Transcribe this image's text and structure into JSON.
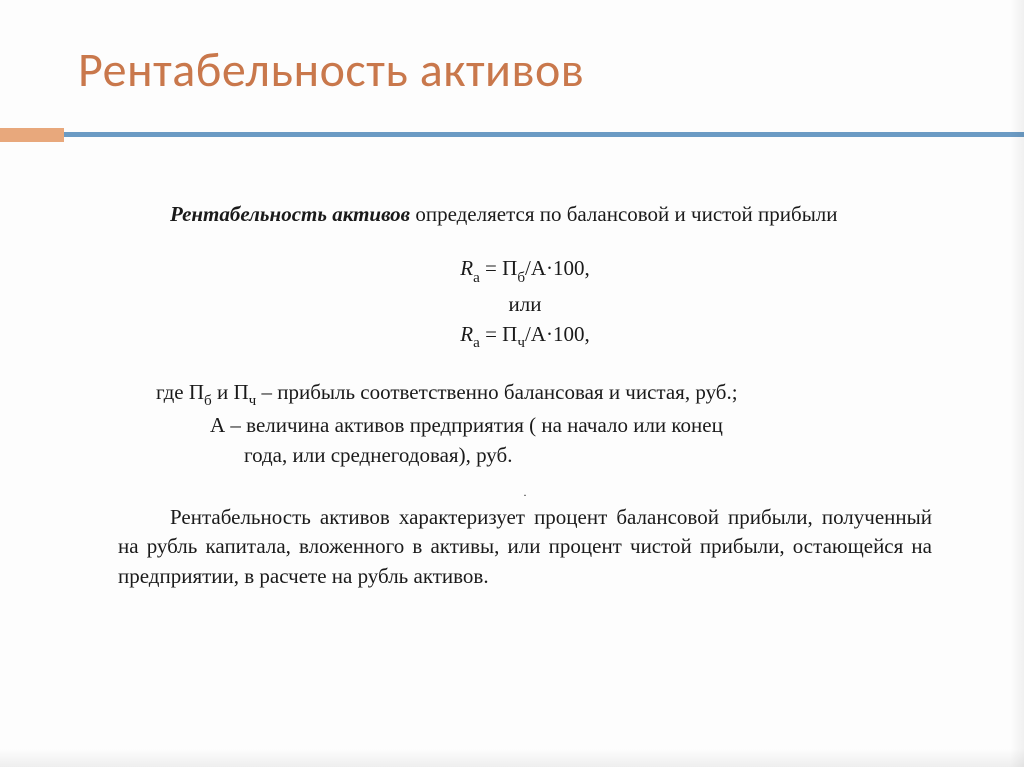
{
  "title": "Рентабельность активов",
  "colors": {
    "title_color": "#c9784c",
    "accent_left": "#e8a87c",
    "accent_line": "#6b9bc4",
    "text_color": "#1a1a1a",
    "background": "#fdfdfd"
  },
  "typography": {
    "title_fontsize": 48,
    "body_fontsize": 21,
    "body_family": "Times New Roman"
  },
  "intro": {
    "lead_bold": "Рентабельность активов",
    "rest": " определяется по балансовой и чистой прибыли"
  },
  "formula": {
    "line1_lhs": "R",
    "line1_lhs_sub": "а",
    "line1_eq": " = П",
    "line1_rhs_sub": "б",
    "line1_tail": "/А·100,",
    "or": "или",
    "line2_lhs": "R",
    "line2_lhs_sub": "а",
    "line2_eq": " = П",
    "line2_rhs_sub": "ч",
    "line2_tail": "/А·100,"
  },
  "where": {
    "prefix": "где ",
    "p1a": "П",
    "p1a_sub": "б",
    "p1_and": " и ",
    "p1b": "П",
    "p1b_sub": "ч",
    "p1_rest": " – прибыль соответственно балансовая и чистая, руб.;",
    "p2": "А – величина активов предприятия ( на начало или конец",
    "p3": "года, или среднегодовая), руб."
  },
  "body2": "Рентабельность активов характеризует процент балансовой прибыли, полученный на рубль капитала, вложенного в активы, или процент чистой прибыли, остающейся на предприятии, в расчете на рубль активов.",
  "tiny": "."
}
